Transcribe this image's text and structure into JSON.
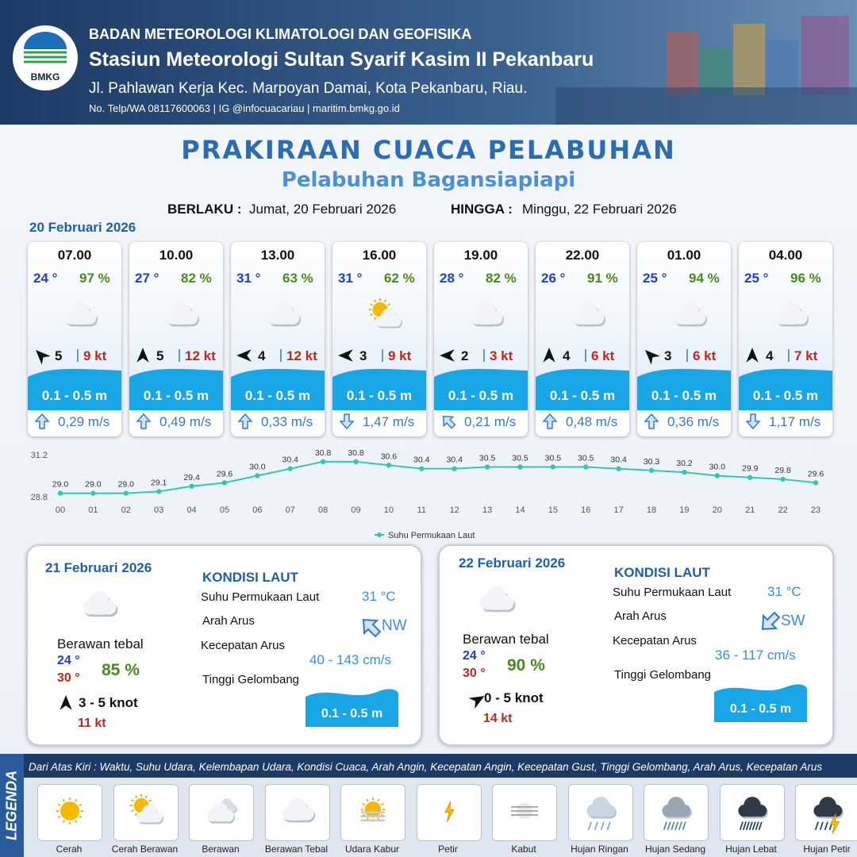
{
  "header": {
    "agency": "BADAN METEOROLOGI KLIMATOLOGI DAN GEOFISIKA",
    "station": "Stasiun Meteorologi Sultan Syarif Kasim II Pekanbaru",
    "address": "Jl. Pahlawan Kerja Kec. Marpoyan Damai, Kota Pekanbaru, Riau.",
    "contact": "No. Telp/WA 08117600063 | IG @infocuacariau | maritim.bmkg.go.id",
    "logo": "BMKG"
  },
  "title": "PRAKIRAAN CUACA PELABUHAN",
  "subtitle": "Pelabuhan Bagansiapiapi",
  "validity": {
    "from_label": "BERLAKU :",
    "from": "Jumat, 20 Februari 2026",
    "to_label": "HINGGA :",
    "to": "Minggu, 22 Februari 2026"
  },
  "forecast": {
    "date": "20 Februari 2026",
    "slots": [
      {
        "time": "07.00",
        "temperature": "24 °",
        "humidity": "97 %",
        "condition": 3,
        "wind_direction": 315,
        "wind_speed": "5",
        "gust": "9 kt",
        "wave": "0.1 - 0.5 m",
        "current_direction": 0,
        "current_speed": "0,29 m/s"
      },
      {
        "time": "10.00",
        "temperature": "27 °",
        "humidity": "82 %",
        "condition": 3,
        "wind_direction": 0,
        "wind_speed": "5",
        "gust": "12 kt",
        "wave": "0.1 - 0.5 m",
        "current_direction": 0,
        "current_speed": "0,49 m/s"
      },
      {
        "time": "13.00",
        "temperature": "31 °",
        "humidity": "63 %",
        "condition": 3,
        "wind_direction": 270,
        "wind_speed": "4",
        "gust": "12 kt",
        "wave": "0.1 - 0.5 m",
        "current_direction": 0,
        "current_speed": "0,33 m/s"
      },
      {
        "time": "16.00",
        "temperature": "31 °",
        "humidity": "62 %",
        "condition": 1,
        "wind_direction": 270,
        "wind_speed": "3",
        "gust": "9 kt",
        "wave": "0.1 - 0.5 m",
        "current_direction": 180,
        "current_speed": "1,47 m/s"
      },
      {
        "time": "19.00",
        "temperature": "28 °",
        "humidity": "82 %",
        "condition": 3,
        "wind_direction": 270,
        "wind_speed": "2",
        "gust": "3 kt",
        "wave": "0.1 - 0.5 m",
        "current_direction": 315,
        "current_speed": "0,21 m/s"
      },
      {
        "time": "22.00",
        "temperature": "26 °",
        "humidity": "91 %",
        "condition": 3,
        "wind_direction": 0,
        "wind_speed": "4",
        "gust": "6 kt",
        "wave": "0.1 - 0.5 m",
        "current_direction": 0,
        "current_speed": "0,48 m/s"
      },
      {
        "time": "01.00",
        "temperature": "25 °",
        "humidity": "94 %",
        "condition": 3,
        "wind_direction": 315,
        "wind_speed": "3",
        "gust": "6 kt",
        "wave": "0.1 - 0.5 m",
        "current_direction": 0,
        "current_speed": "0,36 m/s"
      },
      {
        "time": "04.00",
        "temperature": "25 °",
        "humidity": "96 %",
        "condition": 3,
        "wind_direction": 0,
        "wind_speed": "4",
        "gust": "7 kt",
        "wave": "0.1 - 0.5 m",
        "current_direction": 180,
        "current_speed": "1,17 m/s"
      }
    ]
  },
  "chart_data": {
    "type": "line",
    "categories": [
      "00",
      "01",
      "02",
      "03",
      "04",
      "05",
      "06",
      "07",
      "08",
      "09",
      "10",
      "11",
      "12",
      "13",
      "14",
      "15",
      "16",
      "17",
      "18",
      "19",
      "20",
      "21",
      "22",
      "23"
    ],
    "series": [
      {
        "name": "Suhu Permukaan Laut",
        "color": "#35c6b2",
        "values": [
          29.0,
          29.0,
          29.0,
          29.1,
          29.4,
          29.6,
          30.0,
          30.4,
          30.8,
          30.8,
          30.6,
          30.4,
          30.4,
          30.5,
          30.5,
          30.5,
          30.5,
          30.4,
          30.3,
          30.2,
          30.0,
          29.9,
          29.8,
          29.6
        ],
        "value_labels": [
          "29.0",
          "29.0",
          "29.0",
          "29.1",
          "29.4",
          "29.6",
          "30.0",
          "30.4",
          "30.8",
          "30.8",
          "30.6",
          "30.4",
          "30.4",
          "30.5",
          "30.5",
          "30.5",
          "30.5",
          "30.4",
          "30.3",
          "30.2",
          "30.0",
          "29.9",
          "29.8",
          "29.6"
        ]
      }
    ],
    "ylim": [
      28.8,
      31.2
    ],
    "yticks": [
      28.8,
      31.2
    ],
    "legend": "bottom"
  },
  "outlook": [
    {
      "date": "21 Februari 2026",
      "condition": 3,
      "condition_text": "Berawan tebal",
      "temp_min": "24 °",
      "temp_max": "30 °",
      "humidity": "85 %",
      "wind_direction": 0,
      "wind": "3  - 5 knot",
      "gust": "11 kt",
      "sea_title": "KONDISI LAUT",
      "sst_label": "Suhu Permukaan Laut",
      "sst": "31 °C",
      "current_dir_label": "Arah Arus",
      "current_direction": 315,
      "current_dir": "NW",
      "current_speed_label": "Kecepatan Arus",
      "current_speed": "40  - 143 cm/s",
      "wave_label": "Tinggi Gelombang",
      "wave": "0.1 - 0.5 m"
    },
    {
      "date": "22 Februari 2026",
      "condition": 3,
      "condition_text": "Berawan tebal",
      "temp_min": "24 °",
      "temp_max": "30 °",
      "humidity": "90 %",
      "wind_direction": 60,
      "wind": "0  - 5 knot",
      "gust": "14 kt",
      "sea_title": "KONDISI LAUT",
      "sst_label": "Suhu Permukaan Laut",
      "sst": "31 °C",
      "current_dir_label": "Arah Arus",
      "current_direction": 225,
      "current_dir": "SW",
      "current_speed_label": "Kecepatan Arus",
      "current_speed": "36  - 117 cm/s",
      "wave_label": "Tinggi Gelombang",
      "wave": "0.1 - 0.5 m"
    }
  ],
  "legend": {
    "title": "LEGENDA",
    "description": "Dari Atas Kiri : Waktu, Suhu Udara, Kelembapan Udara, Kondisi Cuaca, Arah Angin, Kecepatan Angin, Kecepatan Gust, Tinggi Gelombang, Arah Arus, Kecepatan Arus",
    "items": [
      "Cerah",
      "Cerah Berawan",
      "Berawan",
      "Berawan Tebal",
      "Udara Kabur",
      "Petir",
      "Kabut",
      "Hujan Ringan",
      "Hujan Sedang",
      "Hujan Lebat",
      "Hujan Petir"
    ]
  }
}
